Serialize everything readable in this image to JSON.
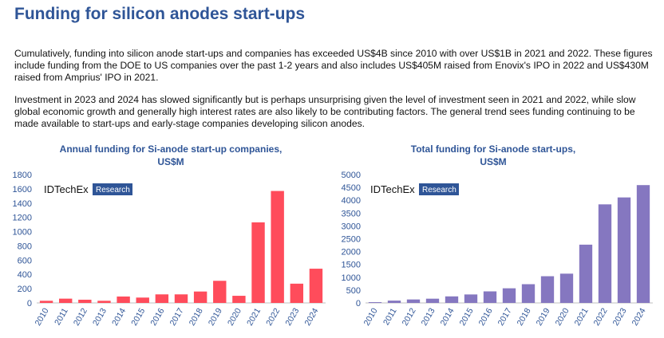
{
  "page": {
    "title": "Funding for silicon anodes start-ups",
    "paragraphs": [
      "Cumulatively, funding into silicon anode start-ups and companies has exceeded US$4B since 2010 with over US$1B in 2021 and 2022. These figures include funding from the DOE to US companies over the past 1-2 years and also includes US$405M raised from Enovix's IPO in 2022 and US$430M raised from Amprius' IPO in 2021.",
      "Investment in 2023 and 2024 has slowed significantly but is perhaps unsurprising given the level of investment seen in 2021 and 2022, while slow global economic growth and generally high interest rates are also likely to be contributing factors. The general trend sees funding continuing to be made available to start-ups and early-stage companies developing silicon anodes."
    ]
  },
  "watermark": {
    "brand": "IDTechEx",
    "tag": "Research"
  },
  "chart_data": [
    {
      "type": "bar",
      "title": [
        "Annual funding for Si-anode start-up companies,",
        "US$M"
      ],
      "categories": [
        "2010",
        "2011",
        "2012",
        "2013",
        "2014",
        "2015",
        "2016",
        "2017",
        "2018",
        "2019",
        "2020",
        "2021",
        "2022",
        "2023",
        "2024"
      ],
      "series": [
        {
          "values": [
            30,
            60,
            45,
            30,
            90,
            75,
            120,
            120,
            160,
            310,
            100,
            1130,
            1570,
            270,
            480
          ]
        }
      ],
      "ylim": [
        0,
        1800
      ],
      "yticks": [
        0,
        200,
        400,
        600,
        800,
        1000,
        1200,
        1400,
        1600,
        1800
      ],
      "grid": false,
      "color": "#ff4c5b"
    },
    {
      "type": "bar",
      "title": [
        "Total funding for Si-anode start-ups,",
        "US$M"
      ],
      "categories": [
        "2010",
        "2011",
        "2012",
        "2013",
        "2014",
        "2015",
        "2016",
        "2017",
        "2018",
        "2019",
        "2020",
        "2021",
        "2022",
        "2023",
        "2024"
      ],
      "series": [
        {
          "values": [
            30,
            90,
            135,
            165,
            255,
            330,
            450,
            570,
            730,
            1040,
            1140,
            2270,
            3840,
            4110,
            4590
          ]
        }
      ],
      "ylim": [
        0,
        5000
      ],
      "yticks": [
        0,
        500,
        1000,
        1500,
        2000,
        2500,
        3000,
        3500,
        4000,
        4500,
        5000
      ],
      "grid": false,
      "color": "#8577c0"
    }
  ]
}
